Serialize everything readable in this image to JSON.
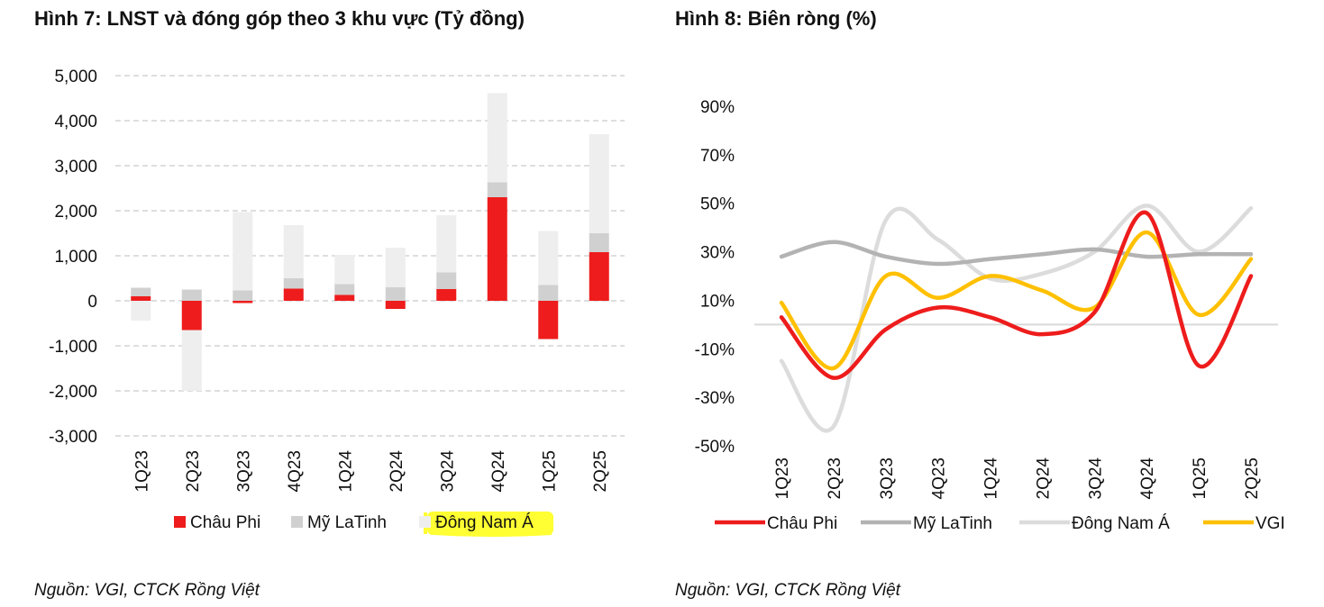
{
  "chart_data": [
    {
      "type": "bar",
      "stacked": true,
      "title": "Hình 7: LNST và đóng góp theo 3 khu vực (Tỷ đồng)",
      "source": "Nguồn: VGI, CTCK Rồng Việt",
      "categories": [
        "1Q23",
        "2Q23",
        "3Q23",
        "4Q23",
        "1Q24",
        "2Q24",
        "3Q24",
        "4Q24",
        "1Q25",
        "2Q25"
      ],
      "series": [
        {
          "name": "Châu Phi",
          "color": "#ee1c1c",
          "values": [
            100,
            -650,
            -50,
            270,
            130,
            -180,
            260,
            2300,
            -850,
            1080
          ]
        },
        {
          "name": "Mỹ LaTinh",
          "color": "#d0d0d0",
          "values": [
            190,
            250,
            230,
            230,
            240,
            300,
            370,
            330,
            350,
            420
          ]
        },
        {
          "name": "Đông Nam Á",
          "color": "#eeeeee",
          "values": [
            -440,
            -1350,
            1740,
            1180,
            650,
            880,
            1270,
            1980,
            1200,
            2200
          ]
        }
      ],
      "yticks": [
        5000,
        4000,
        3000,
        2000,
        1000,
        0,
        -1000,
        -2000,
        -3000
      ],
      "ytick_labels": [
        "5,000",
        "4,000",
        "3,000",
        "2,000",
        "1,000",
        "0",
        "-1,000",
        "-2,000",
        "-3,000"
      ],
      "ylim": [
        -3000,
        5000
      ],
      "legend_position": "bottom",
      "highlighted_legend_entry": "Đông Nam Á",
      "highlight_color": "#ffff33",
      "grid": "dashed"
    },
    {
      "type": "line",
      "title": "Hình 8: Biên ròng (%)",
      "source": "Nguồn: VGI, CTCK Rồng Việt",
      "categories": [
        "1Q23",
        "2Q23",
        "3Q23",
        "4Q23",
        "1Q24",
        "2Q24",
        "3Q24",
        "4Q24",
        "1Q25",
        "2Q25"
      ],
      "series": [
        {
          "name": "Châu Phi",
          "color": "#ee1c1c",
          "values": [
            3,
            -22,
            -2,
            7,
            3,
            -4,
            5,
            46,
            -17,
            20
          ]
        },
        {
          "name": "Mỹ LaTinh",
          "color": "#b3b3b3",
          "values": [
            28,
            34,
            28,
            25,
            27,
            29,
            31,
            28,
            29,
            29
          ]
        },
        {
          "name": "Đông Nam Á",
          "color": "#dcdcdc",
          "values": [
            -15,
            -42,
            43,
            35,
            19,
            21,
            30,
            49,
            30,
            48
          ]
        },
        {
          "name": "VGI",
          "color": "#ffc000",
          "values": [
            9,
            -18,
            20,
            11,
            20,
            14,
            7,
            38,
            4,
            27
          ]
        }
      ],
      "yticks": [
        90,
        70,
        50,
        30,
        10,
        -10,
        -30,
        -50
      ],
      "ytick_labels": [
        "90%",
        "70%",
        "50%",
        "30%",
        "10%",
        "-10%",
        "-30%",
        "-50%"
      ],
      "ylim": [
        -50,
        90
      ],
      "legend_position": "bottom",
      "grid": "solid"
    }
  ]
}
